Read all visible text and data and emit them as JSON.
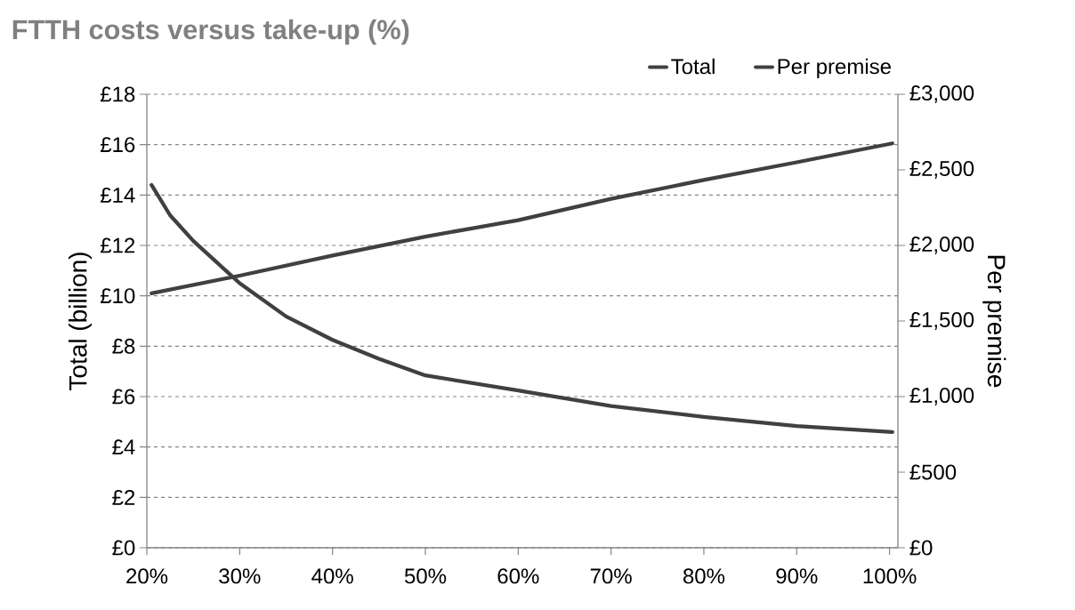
{
  "chart_data": {
    "type": "line",
    "title": "FTTH costs versus take-up (%)",
    "ylabel": "Total (billion)",
    "y2label": "Per premise",
    "xlim": [
      20,
      100.9
    ],
    "xticks": [
      {
        "value": 20,
        "label": "20%"
      },
      {
        "value": 30,
        "label": "30%"
      },
      {
        "value": 40,
        "label": "40%"
      },
      {
        "value": 50,
        "label": "50%"
      },
      {
        "value": 60,
        "label": "60%"
      },
      {
        "value": 70,
        "label": "70%"
      },
      {
        "value": 80,
        "label": "80%"
      },
      {
        "value": 90,
        "label": "90%"
      },
      {
        "value": 100,
        "label": "100%"
      }
    ],
    "ylim": [
      0,
      18
    ],
    "yticks": [
      {
        "value": 0,
        "label": "£0"
      },
      {
        "value": 2,
        "label": "£2"
      },
      {
        "value": 4,
        "label": "£4"
      },
      {
        "value": 6,
        "label": "£6"
      },
      {
        "value": 8,
        "label": "£8"
      },
      {
        "value": 10,
        "label": "£10"
      },
      {
        "value": 12,
        "label": "£12"
      },
      {
        "value": 14,
        "label": "£14"
      },
      {
        "value": 16,
        "label": "£16"
      },
      {
        "value": 18,
        "label": "£18"
      }
    ],
    "y2lim": [
      0,
      3000
    ],
    "y2ticks": [
      {
        "value": 0,
        "label": "£0"
      },
      {
        "value": 500,
        "label": "£500"
      },
      {
        "value": 1000,
        "label": "£1,000"
      },
      {
        "value": 1500,
        "label": "£1,500"
      },
      {
        "value": 2000,
        "label": "£2,000"
      },
      {
        "value": 2500,
        "label": "£2,500"
      },
      {
        "value": 3000,
        "label": "£3,000"
      }
    ],
    "series": [
      {
        "name": "Total",
        "color": "#404040",
        "x": [
          20.5,
          30,
          40,
          50,
          60,
          70,
          80,
          90,
          100.3
        ],
        "values": [
          10.1,
          10.8,
          11.6,
          12.35,
          13.0,
          13.85,
          14.6,
          15.3,
          16.05
        ]
      },
      {
        "name": "Per premise",
        "color": "#404040",
        "axis": "y2",
        "x": [
          20.5,
          22.5,
          25,
          30,
          35,
          40,
          45,
          50,
          60,
          70,
          80,
          90,
          100.3
        ],
        "values": [
          2400,
          2200,
          2030,
          1750,
          1530,
          1375,
          1250,
          1140,
          1040,
          937,
          866,
          805,
          765
        ]
      }
    ],
    "grid": "y",
    "legend": "top right",
    "marker": "none",
    "line_style": "solid"
  }
}
